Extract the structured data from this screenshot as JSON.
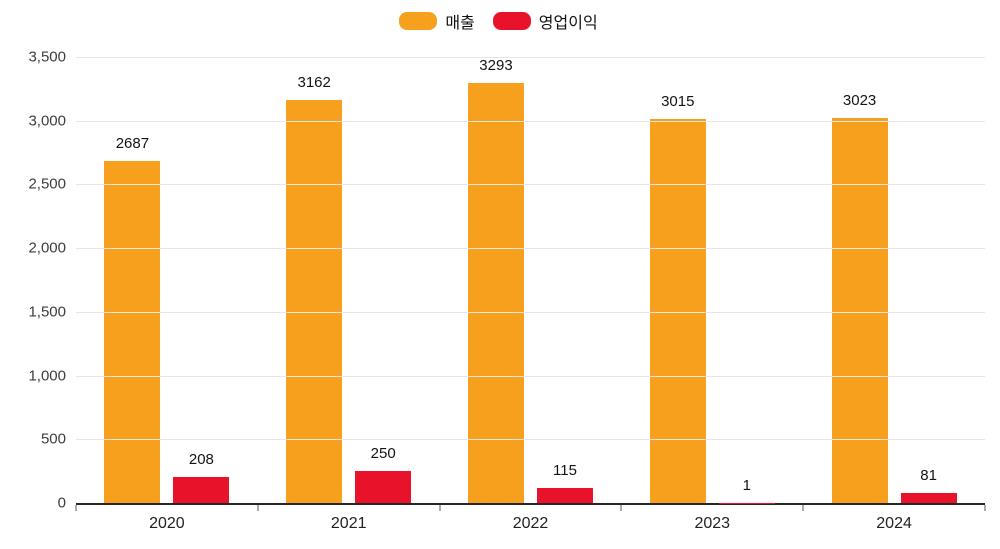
{
  "legend": [
    {
      "label": "매출",
      "color": "#F6A01E"
    },
    {
      "label": "영업이익",
      "color": "#E8132B"
    }
  ],
  "chart_data": {
    "type": "bar",
    "title": "",
    "xlabel": "",
    "ylabel": "",
    "categories": [
      "2020",
      "2021",
      "2022",
      "2023",
      "2024"
    ],
    "series": [
      {
        "name": "매출",
        "color": "#F6A01E",
        "values": [
          2687,
          3162,
          3293,
          3015,
          3023
        ]
      },
      {
        "name": "영업이익",
        "color": "#E8132B",
        "values": [
          208,
          250,
          115,
          1,
          81
        ]
      }
    ],
    "ylim": [
      0,
      3500
    ],
    "ytick_step": 500,
    "yticks": [
      "3,500",
      "3,000",
      "2,500",
      "2,000",
      "1,500",
      "1,000",
      "500",
      "0"
    ],
    "grid": true,
    "legend_position": "top"
  }
}
